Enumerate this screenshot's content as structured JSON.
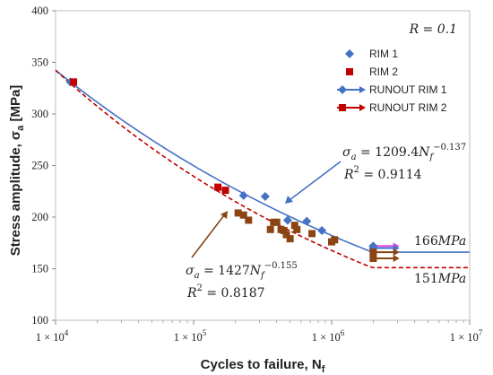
{
  "chart_data": {
    "type": "scatter",
    "xlabel": "Cycles to failure, N",
    "xlabel_sub": "f",
    "ylabel": "Stress amplitude, σ",
    "ylabel_sub": "a",
    "ylabel_unit": " [MPa]",
    "xscale": "log",
    "xlim": [
      10000,
      10000000
    ],
    "ylim": [
      100,
      400
    ],
    "x_ticks": [
      10000,
      100000,
      1000000,
      10000000
    ],
    "x_tick_labels": [
      {
        "base": "1 × 10",
        "exp": "4"
      },
      {
        "base": "1 × 10",
        "exp": "5"
      },
      {
        "base": "1 × 10",
        "exp": "6"
      },
      {
        "base": "1 × 10",
        "exp": "7"
      }
    ],
    "y_ticks": [
      100,
      150,
      200,
      250,
      300,
      350,
      400
    ],
    "grid": false,
    "legend_position": "top-right",
    "r_ratio_label": "R = 0.1",
    "colors": {
      "rim1": "#4472c4",
      "rim2": "#c00000",
      "runout2": "#8b4513",
      "fit1": "#4472c4",
      "fit2": "#c00000"
    },
    "series": [
      {
        "name": "RIM 1",
        "marker": "diamond",
        "points": [
          [
            12800,
            331
          ],
          [
            230000,
            221
          ],
          [
            330000,
            220
          ],
          [
            480000,
            197
          ],
          [
            660000,
            196
          ],
          [
            850000,
            187
          ]
        ]
      },
      {
        "name": "RIM 2",
        "marker": "square",
        "points": [
          [
            13500,
            331
          ],
          [
            150000,
            229
          ],
          [
            170000,
            226
          ],
          [
            210000,
            204
          ],
          [
            250000,
            197
          ],
          [
            230000,
            202
          ],
          [
            360000,
            188
          ],
          [
            380000,
            195
          ],
          [
            400000,
            195
          ],
          [
            430000,
            188
          ],
          [
            450000,
            187
          ],
          [
            470000,
            183
          ],
          [
            500000,
            179
          ],
          [
            540000,
            192
          ],
          [
            560000,
            188
          ],
          [
            720000,
            184
          ],
          [
            1000000,
            176
          ],
          [
            1050000,
            178
          ]
        ]
      },
      {
        "name": "RUNOUT RIM 1",
        "marker": "diamond-arrow",
        "points": [
          [
            2000000,
            172
          ],
          [
            2000000,
            170
          ]
        ]
      },
      {
        "name": "RUNOUT RIM 2",
        "marker": "square-arrow",
        "points": [
          [
            2000000,
            166
          ],
          [
            2000000,
            160
          ]
        ]
      }
    ],
    "fits": [
      {
        "label": "RIM 1 fit",
        "a": 1209.4,
        "b": -0.137,
        "knee_x": 2000000,
        "plateau": 166,
        "style": "solid"
      },
      {
        "label": "RIM 2 fit",
        "a": 1427,
        "b": -0.155,
        "knee_x": 2000000,
        "plateau": 151,
        "style": "dashed"
      }
    ],
    "annotations": [
      {
        "id": "eq1",
        "text": "σ_a = 1209.4N_f^{-0.137}",
        "sigma": "σ",
        "sub_a": "a",
        "eq": " = 1209.4",
        "N": "N",
        "sub_f": "f",
        "exp": "−0.137"
      },
      {
        "id": "r1",
        "R": "R",
        "sup": "2",
        "val": " = 0.9114"
      },
      {
        "id": "eq2",
        "sigma": "σ",
        "sub_a": "a",
        "eq": " = 1427",
        "N": "N",
        "sub_f": "f",
        "exp": "−0.155"
      },
      {
        "id": "r2",
        "R": "R",
        "sup": "2",
        "val": " = 0.8187"
      },
      {
        "id": "plat1",
        "num": "166",
        "unit": "MPa"
      },
      {
        "id": "plat2",
        "num": "151",
        "unit": "MPa"
      }
    ]
  }
}
